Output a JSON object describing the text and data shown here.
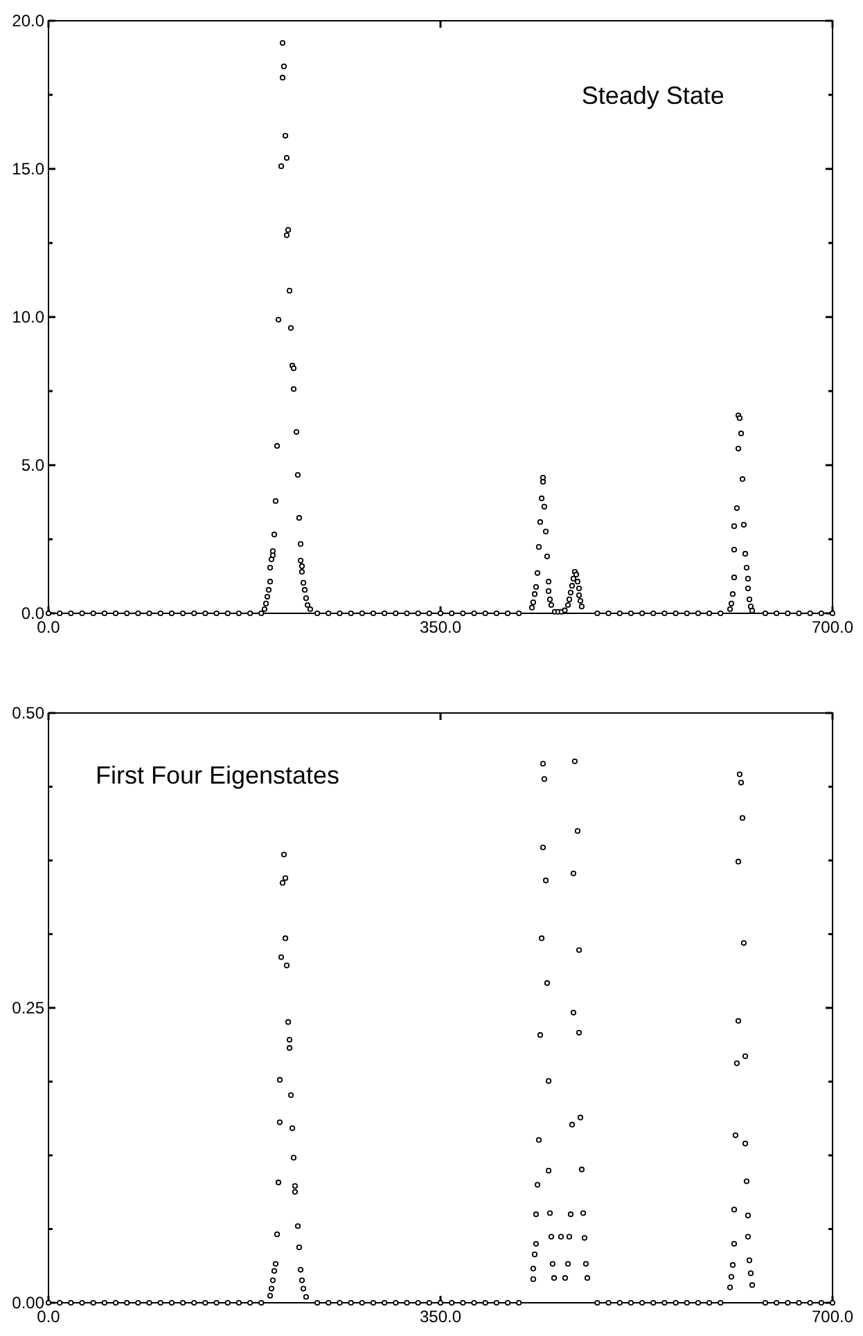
{
  "chart_data": [
    {
      "type": "scatter",
      "marker": "circle",
      "annotations": [
        "Steady State"
      ],
      "xlim": [
        0,
        700
      ],
      "xticks": [
        {
          "value": 0,
          "label": "0.0"
        },
        {
          "value": 350,
          "label": "350.0"
        },
        {
          "value": 700,
          "label": "700.0"
        }
      ],
      "ylim": [
        0,
        20
      ],
      "yticks": [
        {
          "value": 0,
          "label": "0.0"
        },
        {
          "value": 2.5,
          "label": null
        },
        {
          "value": 5,
          "label": "5.0"
        },
        {
          "value": 7.5,
          "label": null
        },
        {
          "value": 10,
          "label": "10.0"
        },
        {
          "value": 12.5,
          "label": null
        },
        {
          "value": 15,
          "label": "15.0"
        },
        {
          "value": 17.5,
          "label": null
        },
        {
          "value": 20,
          "label": "20.0"
        }
      ],
      "series": [
        {
          "color": "#000000",
          "x": [
            0,
            10,
            20,
            30,
            40,
            50,
            60,
            70,
            80,
            90,
            100,
            110,
            120,
            130,
            140,
            150,
            160,
            170,
            180,
            190,
            192.9,
            194.2,
            195.4,
            196.6,
            197.9,
            197.9,
            199.1,
            200.3,
            200.3,
            201.6,
            202.8,
            204.1,
            205.3,
            207.8,
            209.0,
            209.0,
            210.2,
            211.5,
            212.7,
            212.7,
            214.0,
            215.2,
            216.4,
            217.7,
            218.9,
            218.9,
            221.4,
            222.6,
            223.8,
            225.1,
            225.1,
            226.3,
            226.3,
            227.6,
            228.8,
            230.0,
            231.3,
            233.7,
            240,
            250,
            260,
            270,
            280,
            290,
            300,
            310,
            320,
            330,
            340,
            350,
            360,
            370,
            380,
            390,
            400,
            410,
            420,
            431.6,
            432.8,
            434.1,
            435.3,
            436.6,
            437.8,
            439.0,
            440.3,
            441.5,
            441.5,
            442.7,
            444.0,
            445.2,
            446.5,
            446.5,
            447.7,
            448.9,
            452,
            455,
            458,
            461,
            463.8,
            465.0,
            466.2,
            467.5,
            468.7,
            469.9,
            471.2,
            472.4,
            473.7,
            473.7,
            474.9,
            476.1,
            490,
            500,
            510,
            520,
            530,
            540,
            550,
            560,
            570,
            580,
            590,
            600,
            608.5,
            609.7,
            610.9,
            612.2,
            612.2,
            612.2,
            614.6,
            615.9,
            615.9,
            617.1,
            618.4,
            619.6,
            620.8,
            622.1,
            623.3,
            624.5,
            624.5,
            625.8,
            627.0,
            628.3,
            640,
            650,
            660,
            670,
            680,
            690,
            700
          ],
          "values": [
            0,
            0,
            0,
            0,
            0,
            0,
            0,
            0,
            0,
            0,
            0,
            0,
            0,
            0,
            0,
            0,
            0,
            0,
            0,
            0,
            0.14,
            0.33,
            0.56,
            0.79,
            1.07,
            1.54,
            1.82,
            1.96,
            2.1,
            2.66,
            3.79,
            5.65,
            9.91,
            15.09,
            19.25,
            18.08,
            18.46,
            16.12,
            15.37,
            12.76,
            12.94,
            10.89,
            9.63,
            8.36,
            8.27,
            7.57,
            6.12,
            4.67,
            3.22,
            2.34,
            1.78,
            1.59,
            1.4,
            1.03,
            0.79,
            0.51,
            0.28,
            0.14,
            0,
            0,
            0,
            0,
            0,
            0,
            0,
            0,
            0,
            0,
            0,
            0,
            0,
            0,
            0,
            0,
            0,
            0,
            0,
            0.19,
            0.37,
            0.65,
            0.89,
            1.36,
            2.24,
            3.08,
            3.88,
            4.58,
            4.44,
            3.6,
            2.76,
            1.92,
            1.07,
            0.75,
            0.47,
            0.28,
            0.05,
            0.05,
            0.05,
            0.1,
            0.28,
            0.47,
            0.7,
            0.93,
            1.17,
            1.4,
            1.31,
            1.07,
            0.84,
            0.61,
            0.42,
            0.23,
            0,
            0,
            0,
            0,
            0,
            0,
            0,
            0,
            0,
            0,
            0,
            0,
            0.14,
            0.33,
            0.65,
            1.21,
            2.15,
            2.94,
            3.55,
            5.56,
            6.68,
            6.59,
            6.07,
            4.53,
            2.99,
            2.01,
            1.54,
            1.17,
            0.84,
            0.47,
            0.23,
            0.09,
            0,
            0,
            0,
            0,
            0,
            0,
            0
          ]
        }
      ]
    },
    {
      "type": "scatter",
      "marker": "circle",
      "annotations": [
        "First Four Eigenstates"
      ],
      "xlim": [
        0,
        700
      ],
      "xticks": [
        {
          "value": 0,
          "label": "0.0"
        },
        {
          "value": 350,
          "label": "350.0"
        },
        {
          "value": 700,
          "label": "700.0"
        }
      ],
      "ylim": [
        0,
        0.5
      ],
      "yticks": [
        {
          "value": 0,
          "label": "0.00"
        },
        {
          "value": 0.0625,
          "label": null
        },
        {
          "value": 0.125,
          "label": null
        },
        {
          "value": 0.1875,
          "label": null
        },
        {
          "value": 0.25,
          "label": "0.25"
        },
        {
          "value": 0.3125,
          "label": null
        },
        {
          "value": 0.375,
          "label": null
        },
        {
          "value": 0.4375,
          "label": null
        },
        {
          "value": 0.5,
          "label": "0.50"
        }
      ],
      "series": [
        {
          "color": "#000000",
          "x": [
            0,
            10,
            20,
            30,
            40,
            50,
            60,
            70,
            80,
            90,
            100,
            110,
            120,
            130,
            140,
            150,
            160,
            170,
            180,
            190,
            197.9,
            199.1,
            200.3,
            201.6,
            202.8,
            204.1,
            205.3,
            206.5,
            206.5,
            207.8,
            209.0,
            210.2,
            211.5,
            211.5,
            212.7,
            214.0,
            215.2,
            215.2,
            216.4,
            217.7,
            218.9,
            220.1,
            220.1,
            222.6,
            223.8,
            225.1,
            226.3,
            227.6,
            230.0,
            240,
            250,
            260,
            270,
            280,
            290,
            300,
            310,
            320,
            330,
            340,
            350,
            360,
            370,
            380,
            390,
            400,
            410,
            420,
            432.8,
            432.8,
            434.1,
            435.3,
            435.3,
            436.6,
            437.8,
            439.0,
            440.3,
            441.5,
            441.5,
            442.7,
            444.0,
            445.2,
            446.5,
            446.5,
            447.7,
            448.9,
            450.1,
            451.4,
            457.6,
            461.3,
            463.8,
            465.0,
            466.2,
            467.5,
            468.7,
            468.7,
            469.9,
            472.4,
            473.7,
            473.7,
            474.9,
            476.1,
            477.4,
            478.6,
            479.8,
            481.1,
            490,
            500,
            510,
            520,
            530,
            540,
            550,
            560,
            570,
            580,
            590,
            600,
            608.5,
            609.7,
            610.9,
            612.2,
            612.2,
            613.4,
            614.6,
            615.9,
            615.9,
            617.1,
            618.4,
            619.6,
            620.8,
            622.1,
            622.1,
            623.3,
            624.5,
            624.5,
            625.8,
            627.0,
            628.3,
            640,
            650,
            660,
            670,
            680,
            690,
            700
          ],
          "values": [
            0,
            0,
            0,
            0,
            0,
            0,
            0,
            0,
            0,
            0,
            0,
            0,
            0,
            0,
            0,
            0,
            0,
            0,
            0,
            0,
            0.006,
            0.012,
            0.019,
            0.027,
            0.033,
            0.058,
            0.102,
            0.189,
            0.153,
            0.293,
            0.356,
            0.38,
            0.36,
            0.309,
            0.286,
            0.238,
            0.223,
            0.216,
            0.176,
            0.148,
            0.123,
            0.099,
            0.094,
            0.065,
            0.047,
            0.028,
            0.019,
            0.012,
            0.005,
            0,
            0,
            0,
            0,
            0,
            0,
            0,
            0,
            0,
            0,
            0,
            0,
            0,
            0,
            0,
            0,
            0,
            0,
            0,
            0.029,
            0.02,
            0.041,
            0.075,
            0.05,
            0.1,
            0.138,
            0.227,
            0.309,
            0.457,
            0.386,
            0.444,
            0.358,
            0.271,
            0.188,
            0.112,
            0.076,
            0.056,
            0.033,
            0.021,
            0.056,
            0.021,
            0.033,
            0.056,
            0.075,
            0.151,
            0.364,
            0.246,
            0.459,
            0.4,
            0.299,
            0.229,
            0.157,
            0.113,
            0.076,
            0.055,
            0.033,
            0.021,
            0,
            0,
            0,
            0,
            0,
            0,
            0,
            0,
            0,
            0,
            0,
            0,
            0.013,
            0.022,
            0.032,
            0.079,
            0.05,
            0.142,
            0.203,
            0.374,
            0.239,
            0.448,
            0.441,
            0.411,
            0.305,
            0.209,
            0.135,
            0.103,
            0.074,
            0.056,
            0.036,
            0.025,
            0.015,
            0,
            0,
            0,
            0,
            0,
            0,
            0
          ]
        }
      ]
    }
  ]
}
